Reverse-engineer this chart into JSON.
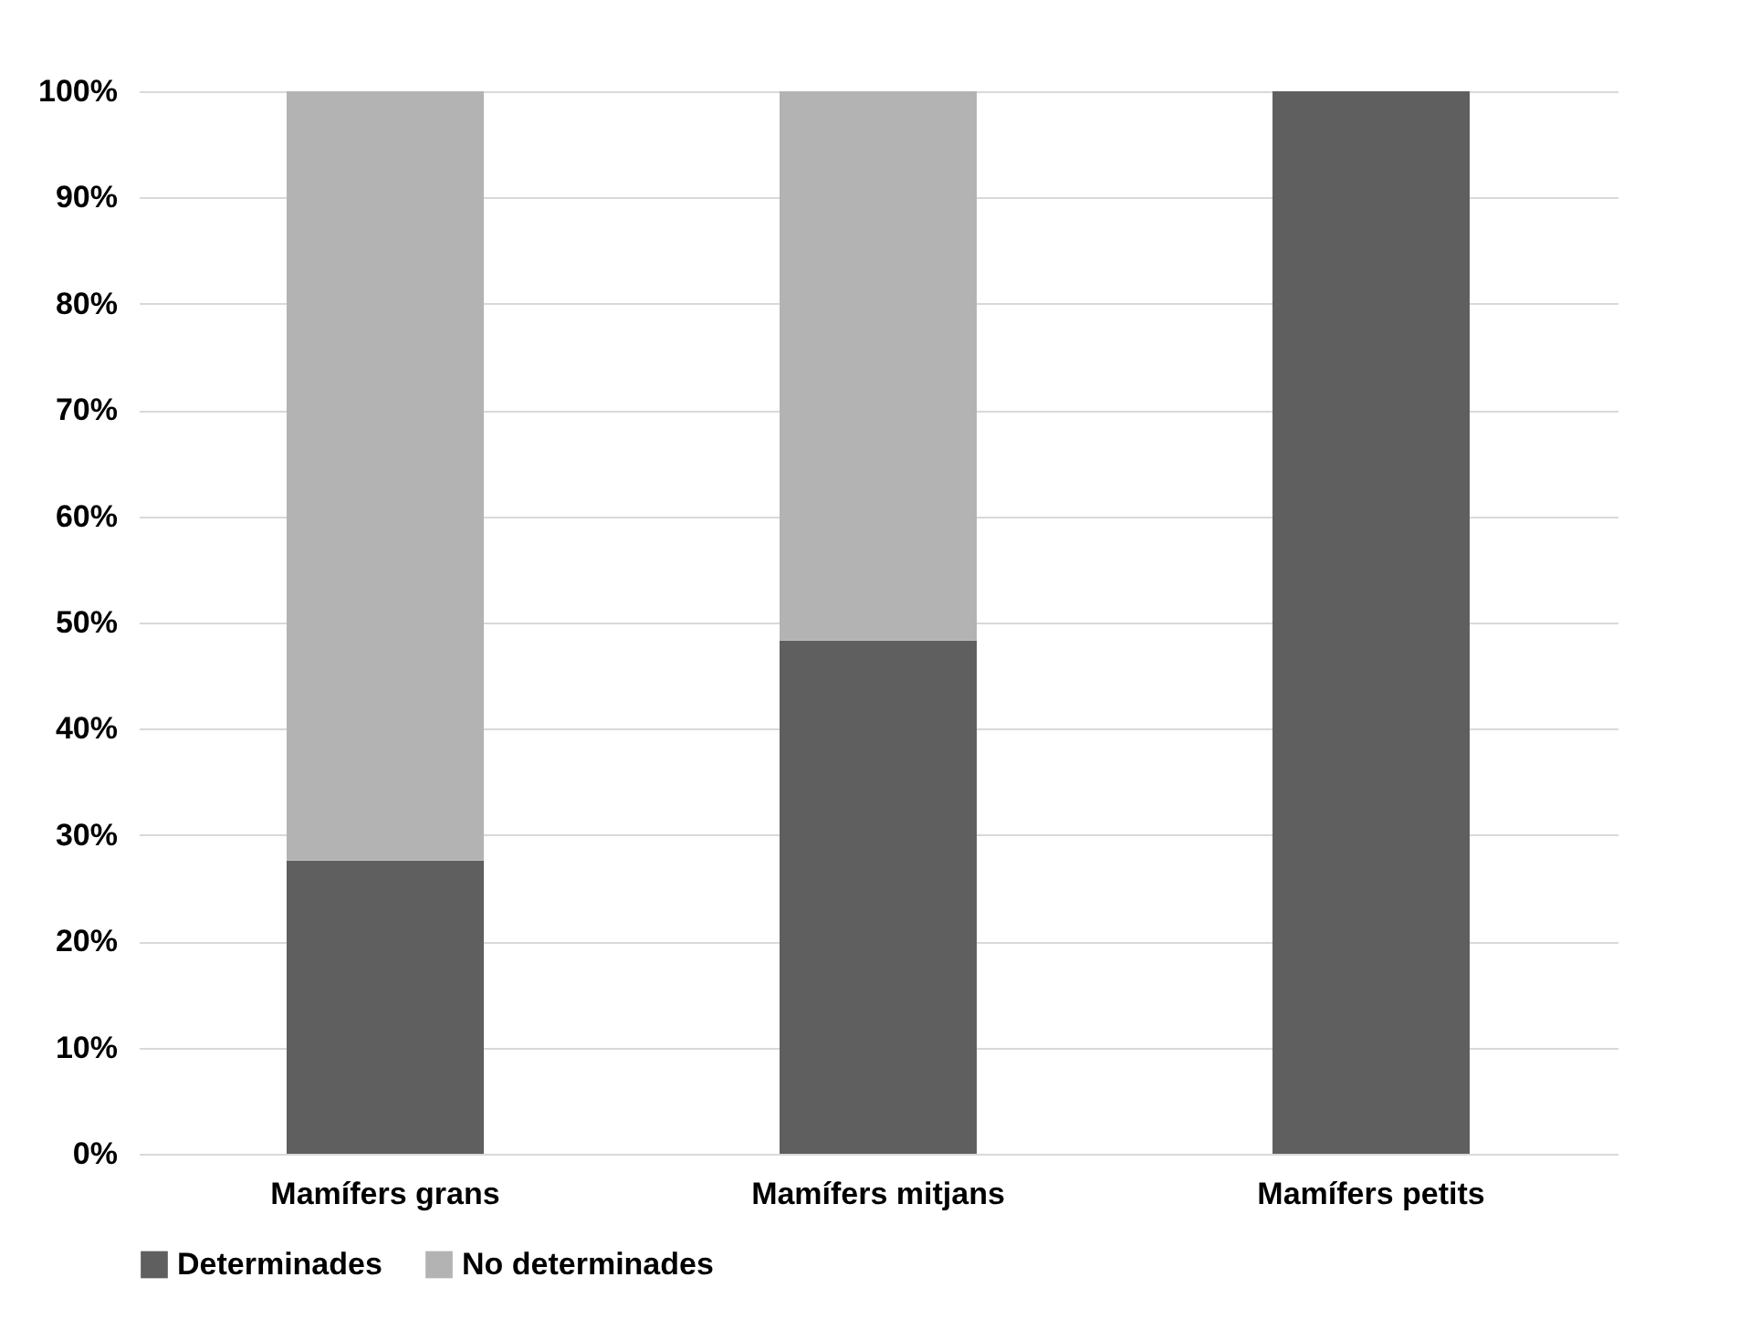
{
  "chart_data": {
    "type": "bar",
    "stacked": true,
    "categories": [
      "Mamífers grans",
      "Mamífers mitjans",
      "Mamífers petits"
    ],
    "series": [
      {
        "name": "Determinades",
        "color": "#5f5f5f",
        "values": [
          27.6,
          48.3,
          100
        ]
      },
      {
        "name": "No determinades",
        "color": "#b3b3b3",
        "values": [
          72.4,
          51.7,
          0
        ]
      }
    ],
    "ylim": [
      0,
      100
    ],
    "yticks": [
      {
        "value": 0,
        "label": "0%"
      },
      {
        "value": 10,
        "label": "10%"
      },
      {
        "value": 20,
        "label": "20%"
      },
      {
        "value": 30,
        "label": "30%"
      },
      {
        "value": 40,
        "label": "40%"
      },
      {
        "value": 50,
        "label": "50%"
      },
      {
        "value": 60,
        "label": "60%"
      },
      {
        "value": 70,
        "label": "70%"
      },
      {
        "value": 80,
        "label": "80%"
      },
      {
        "value": 90,
        "label": "90%"
      },
      {
        "value": 100,
        "label": "100%"
      }
    ],
    "grid": "y",
    "legend": "bottom"
  }
}
